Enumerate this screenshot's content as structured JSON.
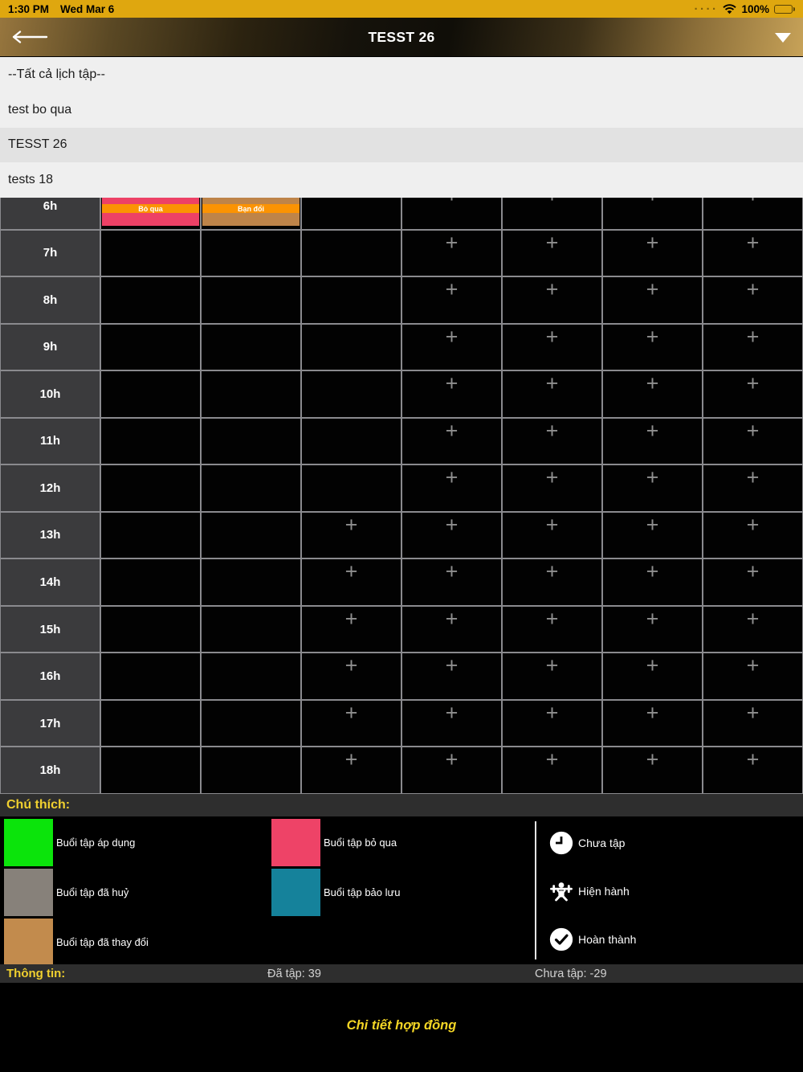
{
  "theme": {
    "gold_status_bar": "#DFA70F",
    "header_yellow": "#F0D02F",
    "link_yellow": "#F4D625",
    "event_band_orange": "#FB9303"
  },
  "status_bar": {
    "time": "1:30 PM",
    "date": "Wed Mar 6",
    "cellular_dots": "····",
    "battery_percent": "100%"
  },
  "nav": {
    "title": "TESST 26"
  },
  "schedule_dropdown": {
    "items": [
      {
        "label": "--Tất cả lịch tập--",
        "selected": false
      },
      {
        "label": "test bo qua",
        "selected": false
      },
      {
        "label": "TESST 26",
        "selected": true
      },
      {
        "label": "tests 18",
        "selected": false
      }
    ]
  },
  "calendar": {
    "day_columns": 7,
    "plus_symbol": "+",
    "rows": [
      {
        "time": "6h",
        "plus_cols": [
          3,
          4,
          5,
          6
        ],
        "events": [
          {
            "col": 0,
            "label": "Bỏ qua",
            "color": "#ED4166"
          },
          {
            "col": 1,
            "label": "Bạn đổi",
            "color": "#BE8449"
          }
        ]
      },
      {
        "time": "7h",
        "plus_cols": [
          3,
          4,
          5,
          6
        ],
        "events": []
      },
      {
        "time": "8h",
        "plus_cols": [
          3,
          4,
          5,
          6
        ],
        "events": []
      },
      {
        "time": "9h",
        "plus_cols": [
          3,
          4,
          5,
          6
        ],
        "events": []
      },
      {
        "time": "10h",
        "plus_cols": [
          3,
          4,
          5,
          6
        ],
        "events": []
      },
      {
        "time": "11h",
        "plus_cols": [
          3,
          4,
          5,
          6
        ],
        "events": []
      },
      {
        "time": "12h",
        "plus_cols": [
          3,
          4,
          5,
          6
        ],
        "events": []
      },
      {
        "time": "13h",
        "plus_cols": [
          2,
          3,
          4,
          5,
          6
        ],
        "events": []
      },
      {
        "time": "14h",
        "plus_cols": [
          2,
          3,
          4,
          5,
          6
        ],
        "events": []
      },
      {
        "time": "15h",
        "plus_cols": [
          2,
          3,
          4,
          5,
          6
        ],
        "events": []
      },
      {
        "time": "16h",
        "plus_cols": [
          2,
          3,
          4,
          5,
          6
        ],
        "events": []
      },
      {
        "time": "17h",
        "plus_cols": [
          2,
          3,
          4,
          5,
          6
        ],
        "events": []
      },
      {
        "time": "18h",
        "plus_cols": [
          2,
          3,
          4,
          5,
          6
        ],
        "events": []
      }
    ]
  },
  "legend": {
    "title": "Chú thích:",
    "color_items": [
      {
        "label": "Buổi tập áp dụng",
        "color": "#0BE40B",
        "column": 1
      },
      {
        "label": "Buổi tập đã huỷ",
        "color": "#87817A",
        "column": 1
      },
      {
        "label": "Buổi tập đã thay đổi",
        "color": "#C28B4D",
        "column": 1
      },
      {
        "label": "Buổi tập bỏ qua",
        "color": "#EE4367",
        "column": 2
      },
      {
        "label": "Buổi tập bảo lưu",
        "color": "#15829B",
        "column": 2
      }
    ],
    "icon_items": [
      {
        "label": "Chưa tập",
        "icon": "clock"
      },
      {
        "label": "Hiện hành",
        "icon": "weightlifter"
      },
      {
        "label": "Hoàn thành",
        "icon": "check"
      }
    ]
  },
  "info_bar": {
    "title": "Thông tin:",
    "done": "Đã tập: 39",
    "remaining": "Chưa tập: -29"
  },
  "footer": {
    "contract_link": "Chi tiết hợp đồng"
  }
}
